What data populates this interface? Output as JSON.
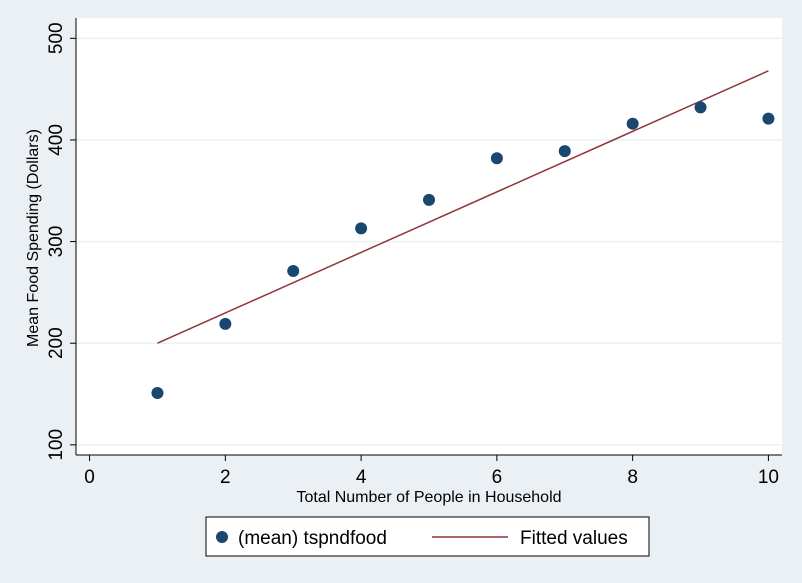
{
  "chart_data": {
    "type": "scatter",
    "xlabel": "Total Number of People in Household",
    "ylabel": "Mean Food Spending (Dollars)",
    "xlim": [
      -0.2,
      10.2
    ],
    "ylim": [
      90,
      520
    ],
    "xticks": [
      0,
      2,
      4,
      6,
      8,
      10
    ],
    "yticks": [
      100,
      200,
      300,
      400,
      500
    ],
    "grid": true,
    "legend_position": "bottom",
    "colors": {
      "background": "#ebf0f5",
      "plot_area": "#ffffff",
      "marker": "#1a476f",
      "fit_line": "#90353b",
      "gridline": "#eaf2f3"
    },
    "series": [
      {
        "name": "(mean) tspndfood",
        "kind": "scatter",
        "x": [
          1,
          2,
          3,
          4,
          5,
          6,
          7,
          8,
          9,
          10
        ],
        "y": [
          151,
          219,
          271,
          313,
          341,
          382,
          389,
          416,
          432,
          421
        ]
      },
      {
        "name": "Fitted values",
        "kind": "line",
        "x": [
          1,
          10
        ],
        "y": [
          200,
          468
        ]
      }
    ]
  }
}
